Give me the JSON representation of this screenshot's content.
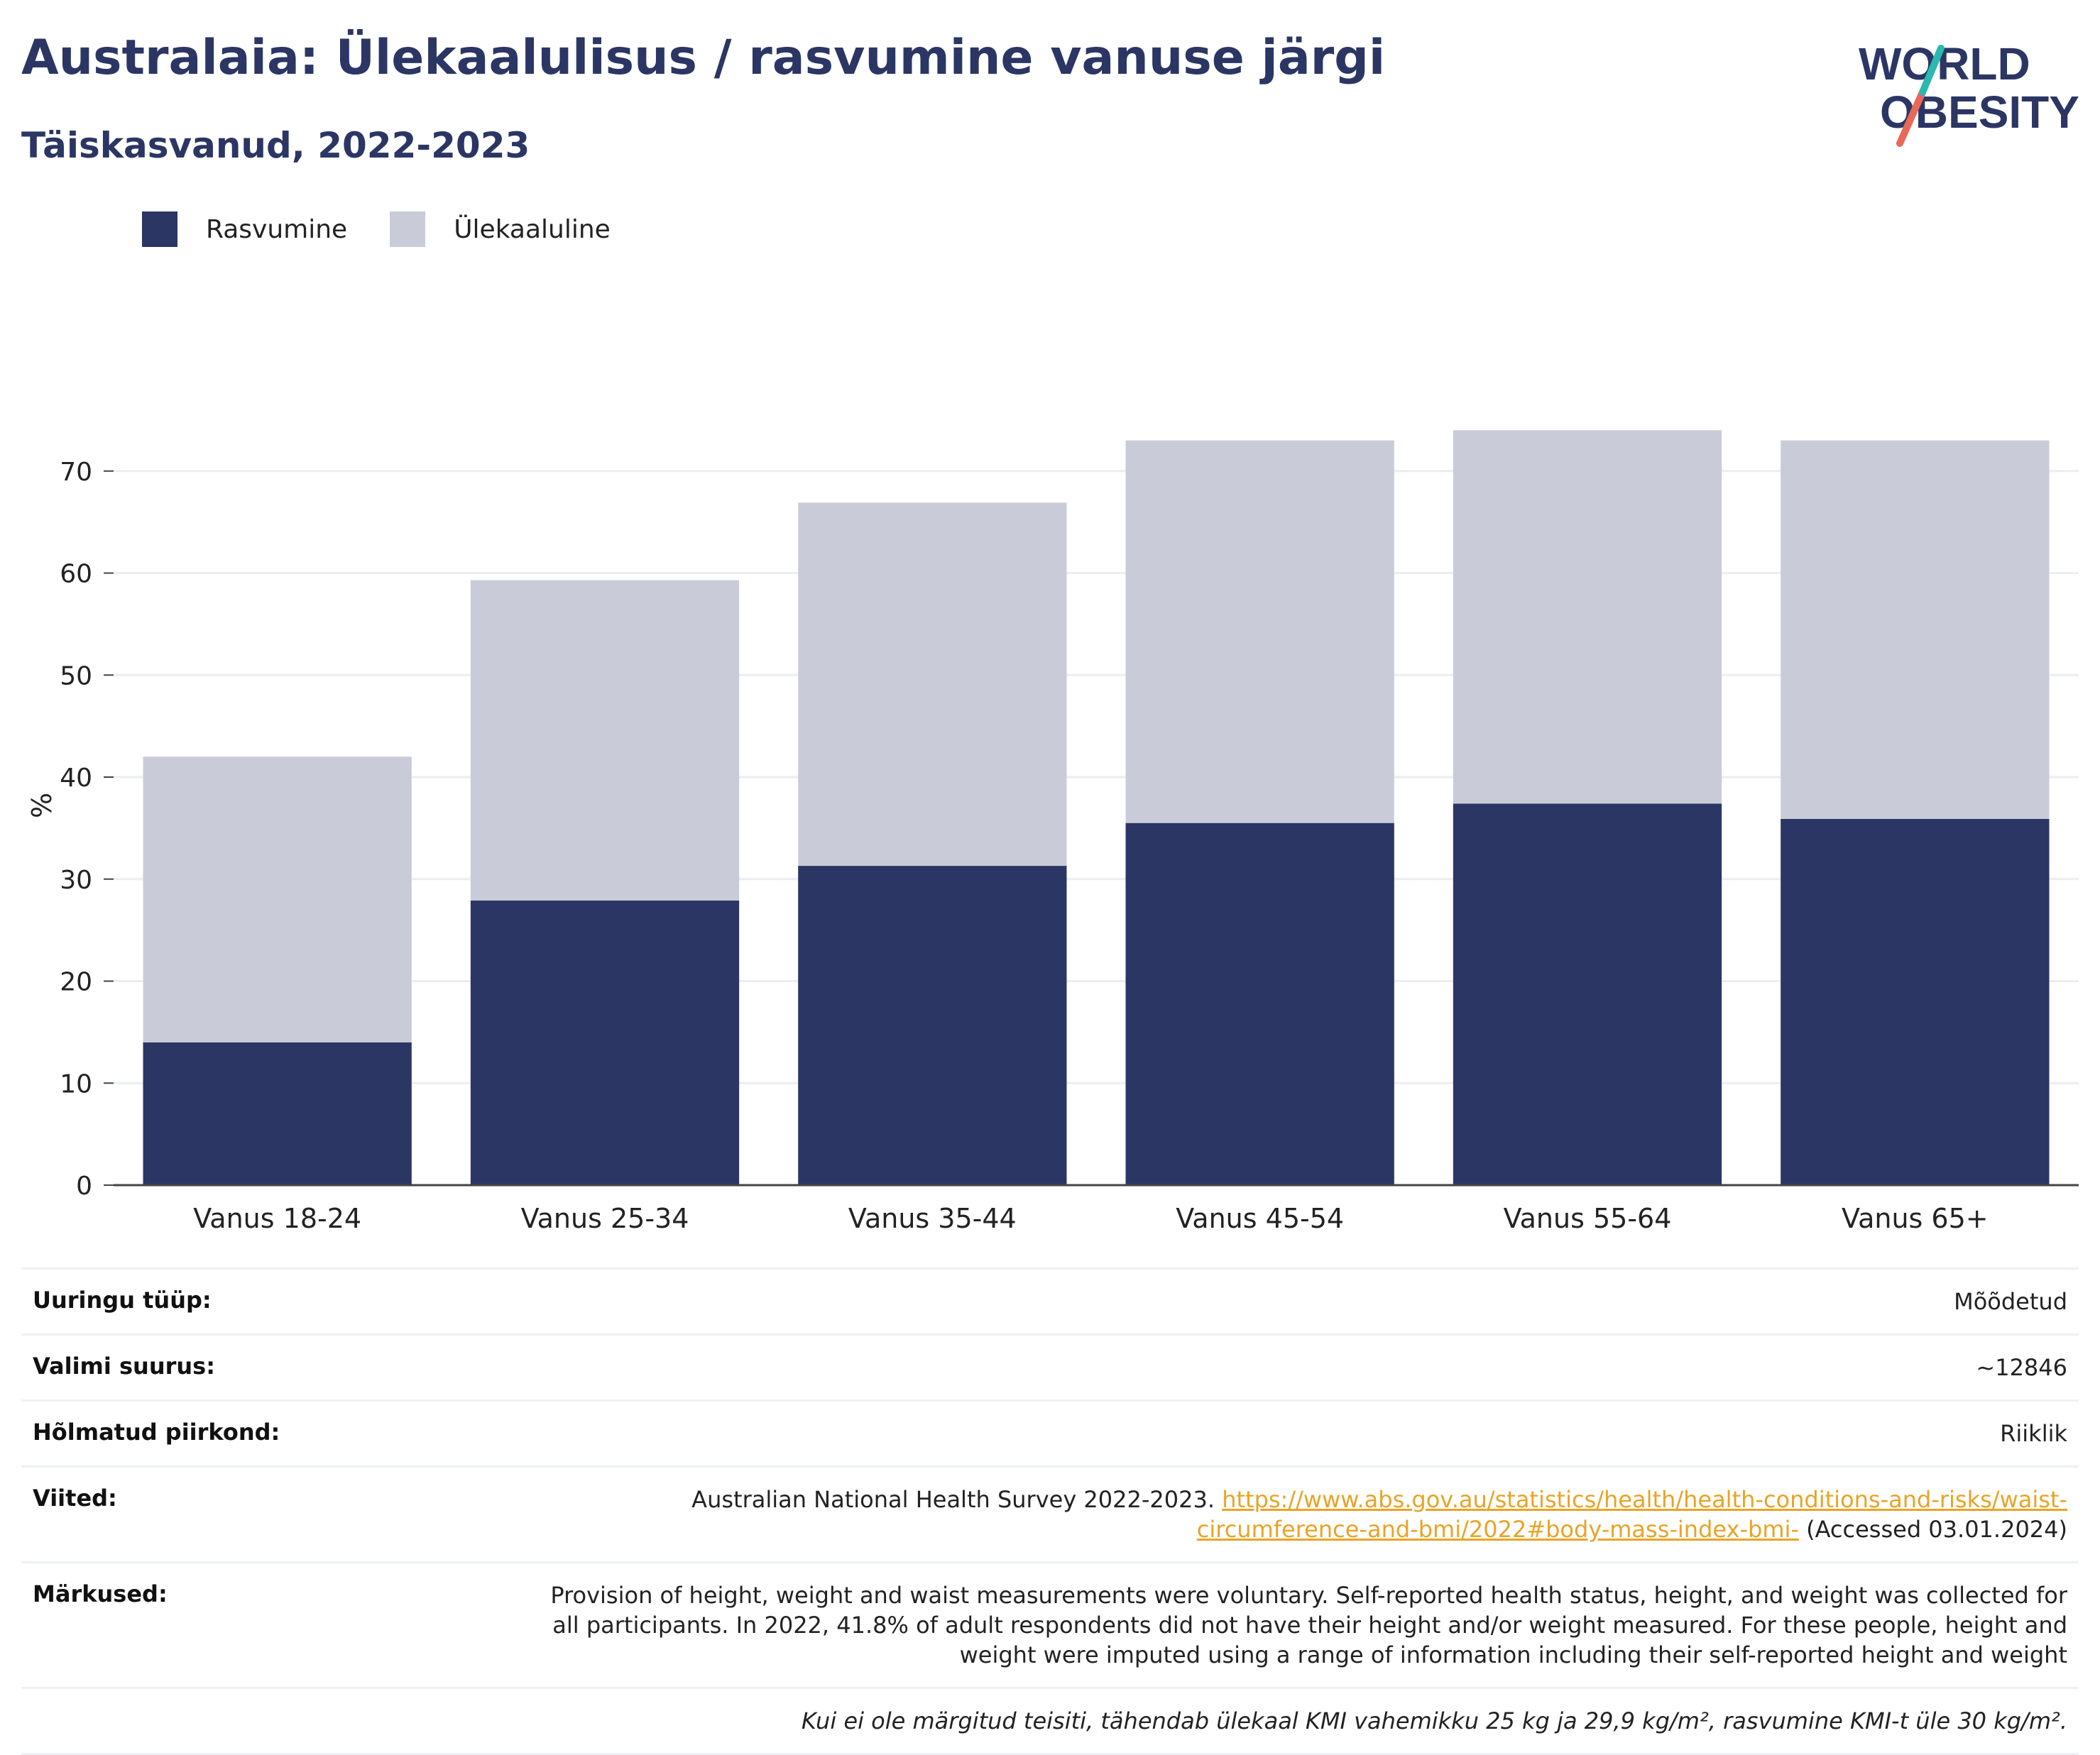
{
  "title": "Australaia: Ülekaalulisus / rasvumine vanuse järgi",
  "subtitle": "Täiskasvanud, 2022-2023",
  "logo": {
    "line1": "WORLD",
    "line2": "OBESITY"
  },
  "legend": [
    {
      "label": "Rasvumine",
      "color": "#2b3664"
    },
    {
      "label": "Ülekaaluline",
      "color": "#c9ccd8"
    }
  ],
  "chart_data": {
    "type": "bar",
    "stacked": true,
    "categories": [
      "Vanus 18-24",
      "Vanus 25-34",
      "Vanus 35-44",
      "Vanus 45-54",
      "Vanus 55-64",
      "Vanus 65+"
    ],
    "series": [
      {
        "name": "Rasvumine",
        "color": "#2b3664",
        "values": [
          14,
          27.9,
          31.3,
          35.5,
          37.4,
          35.9
        ]
      },
      {
        "name": "Ülekaaluline",
        "color": "#c9ccd8",
        "values": [
          28,
          31.4,
          35.6,
          37.5,
          36.6,
          37.1
        ]
      }
    ],
    "ylabel": "%",
    "ylim": [
      0,
      80
    ],
    "yticks": [
      0,
      10,
      20,
      30,
      40,
      50,
      60,
      70
    ],
    "grid": true
  },
  "info": {
    "survey_type": {
      "label": "Uuringu tüüp:",
      "value": "Mõõdetud"
    },
    "sample_size": {
      "label": "Valimi suurus:",
      "value": "~12846"
    },
    "region": {
      "label": "Hõlmatud piirkond:",
      "value": "Riiklik"
    },
    "references": {
      "label": "Viited:",
      "text": "Australian National Health Survey 2022-2023. ",
      "link": "https://www.abs.gov.au/statistics/health/health-conditions-and-risks/waist-circumference-and-bmi/2022#body-mass-index-bmi-",
      "accessed": " (Accessed 03.01.2024)"
    },
    "notes": {
      "label": "Märkused:",
      "value": "Provision of height, weight and waist measurements were voluntary. Self-reported health status, height, and weight was collected for all participants. In 2022, 41.8% of adult respondents did not have their height and/or weight measured. For these people, height and weight were imputed using a range of information including their self-reported height and weight"
    },
    "footnote": "Kui ei ole märgitud teisiti, tähendab ülekaal KMI vahemikku 25 kg ja 29,9 kg/m², rasvumine KMI-t üle 30 kg/m²."
  }
}
